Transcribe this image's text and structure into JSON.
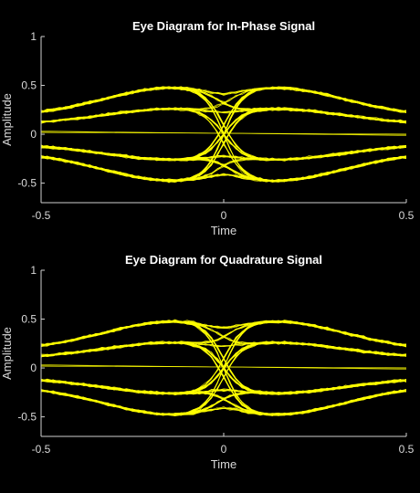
{
  "chart_data": [
    {
      "type": "line",
      "title": "Eye Diagram for In-Phase Signal",
      "xlabel": "Time",
      "ylabel": "Amplitude",
      "xlim": [
        -0.5,
        0.5
      ],
      "ylim": [
        -0.7,
        1
      ],
      "xticks": [
        -0.5,
        0,
        0.5
      ],
      "xtick_labels": [
        "-0.5",
        "0",
        "0.5"
      ],
      "yticks": [
        -0.5,
        0,
        0.5,
        1
      ],
      "ytick_labels": [
        "-0.5",
        "0",
        "0.5",
        "1"
      ],
      "grid": false,
      "series_color": "#ffff00",
      "background": "#000000",
      "symbol_levels": [
        -0.55,
        -0.3,
        0.3,
        0.55
      ],
      "eye_open_x": [
        -0.25,
        0.25
      ],
      "crossing_x": [
        -0.5,
        0,
        0.5
      ]
    },
    {
      "type": "line",
      "title": "Eye Diagram for Quadrature Signal",
      "xlabel": "Time",
      "ylabel": "Amplitude",
      "xlim": [
        -0.5,
        0.5
      ],
      "ylim": [
        -0.7,
        1
      ],
      "xticks": [
        -0.5,
        0,
        0.5
      ],
      "xtick_labels": [
        "-0.5",
        "0",
        "0.5"
      ],
      "yticks": [
        -0.5,
        0,
        0.5,
        1
      ],
      "ytick_labels": [
        "-0.5",
        "0",
        "0.5",
        "1"
      ],
      "grid": false,
      "series_color": "#ffff00",
      "background": "#000000",
      "symbol_levels": [
        -0.55,
        -0.3,
        0.3,
        0.55
      ],
      "eye_open_x": [
        -0.25,
        0.25
      ],
      "crossing_x": [
        -0.5,
        0,
        0.5
      ]
    }
  ]
}
